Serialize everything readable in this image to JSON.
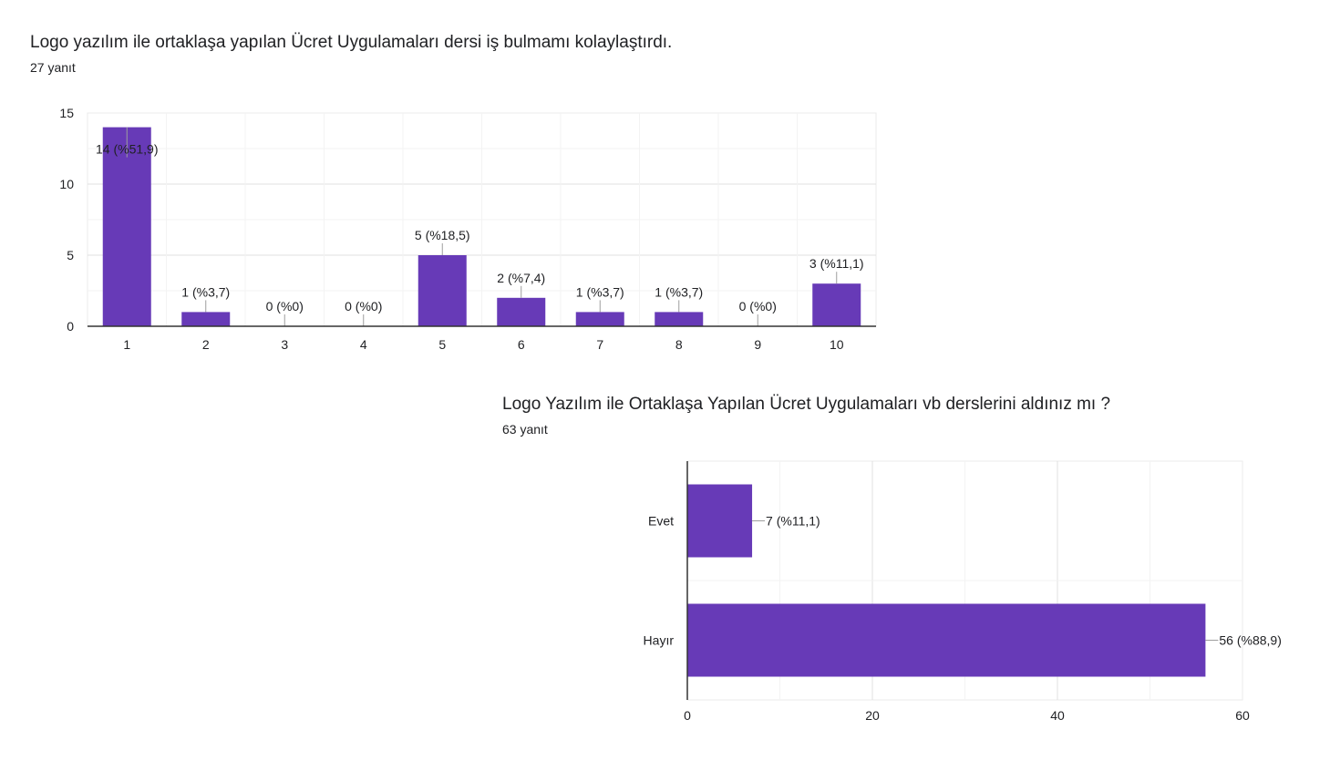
{
  "chart_data": [
    {
      "type": "bar",
      "title": "Logo yazılım ile ortaklaşa yapılan Ücret Uygulamaları dersi iş bulmamı kolaylaştırdı.",
      "subtitle": "27 yanıt",
      "categories": [
        "1",
        "2",
        "3",
        "4",
        "5",
        "6",
        "7",
        "8",
        "9",
        "10"
      ],
      "values": [
        14,
        1,
        0,
        0,
        5,
        2,
        1,
        1,
        0,
        3
      ],
      "data_labels": [
        "14 (%51,9)",
        "1 (%3,7)",
        "0 (%0)",
        "0 (%0)",
        "5 (%18,5)",
        "2 (%7,4)",
        "1 (%3,7)",
        "1 (%3,7)",
        "0 (%0)",
        "3 (%11,1)"
      ],
      "y_ticks": [
        "0",
        "5",
        "10",
        "15"
      ],
      "ylim": [
        0,
        15
      ],
      "orientation": "vertical",
      "grid": true,
      "color": "#673ab7"
    },
    {
      "type": "bar",
      "title": "Logo Yazılım ile Ortaklaşa Yapılan Ücret Uygulamaları vb derslerini aldınız mı ?",
      "subtitle": "63 yanıt",
      "categories": [
        "Evet",
        "Hayır"
      ],
      "values": [
        7,
        56
      ],
      "data_labels": [
        "7 (%11,1)",
        "56 (%88,9)"
      ],
      "x_ticks": [
        "0",
        "20",
        "40",
        "60"
      ],
      "xlim": [
        0,
        60
      ],
      "orientation": "horizontal",
      "grid": true,
      "color": "#673ab7"
    }
  ]
}
